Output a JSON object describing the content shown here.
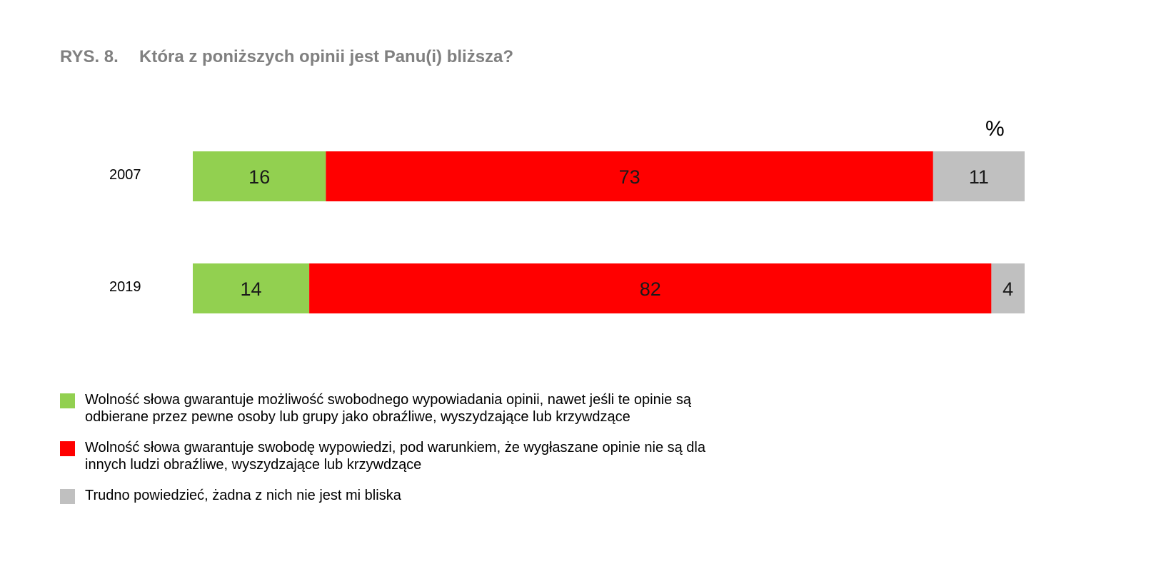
{
  "figure_number": "RYS. 8.",
  "chart_data": {
    "type": "bar",
    "orientation": "horizontal",
    "stacked": true,
    "title": "Która z poniższych opinii jest Panu(i) bliższa?",
    "unit_label": "%",
    "categories": [
      "2007",
      "2019"
    ],
    "series": [
      {
        "name": "Wolność słowa gwarantuje możliwość swobodnego wypowiadania opinii, nawet jeśli te opinie są odbierane przez pewne osoby lub grupy jako obraźliwe, wyszydzające lub krzywdzące",
        "color": "#92d050",
        "values": [
          16,
          14
        ]
      },
      {
        "name": "Wolność słowa gwarantuje swobodę wypowiedzi, pod warunkiem, że wygłaszane opinie nie są dla innych ludzi obraźliwe, wyszydzające lub krzywdzące",
        "color": "#ff0000",
        "values": [
          73,
          82
        ]
      },
      {
        "name": "Trudno powiedzieć, żadna z nich nie jest mi bliska",
        "color": "#c0c0c0",
        "values": [
          11,
          4
        ]
      }
    ],
    "xlim": [
      0,
      100
    ],
    "grid": false,
    "legend_position": "bottom-left"
  }
}
